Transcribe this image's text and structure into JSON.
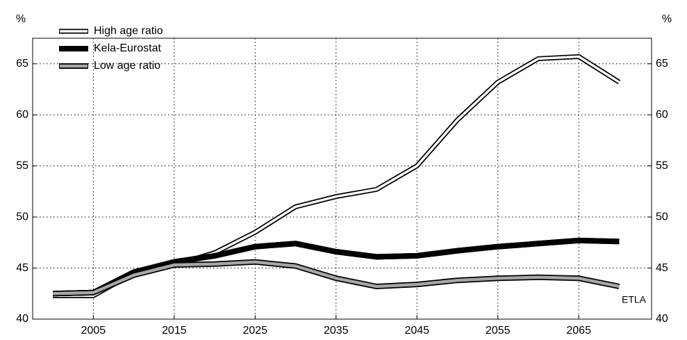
{
  "chart_data": {
    "type": "line",
    "y_unit_left": "%",
    "y_unit_right": "%",
    "annotation": "ETLA",
    "x": [
      2000,
      2005,
      2010,
      2015,
      2020,
      2025,
      2030,
      2035,
      2040,
      2045,
      2050,
      2055,
      2060,
      2065,
      2070
    ],
    "series": [
      {
        "name": "High age ratio",
        "color": "#ffffff",
        "values": [
          42.3,
          42.3,
          44.5,
          45.3,
          46.5,
          48.5,
          51.0,
          52.0,
          52.7,
          55.0,
          59.5,
          63.2,
          65.5,
          65.7,
          63.2
        ]
      },
      {
        "name": "Kela-Eurostat",
        "color": "#000000",
        "values": [
          42.5,
          42.6,
          44.6,
          45.6,
          46.2,
          47.1,
          47.4,
          46.6,
          46.1,
          46.2,
          46.7,
          47.1,
          47.4,
          47.7,
          47.6
        ]
      },
      {
        "name": "Low age ratio",
        "color": "#a6a6a6",
        "values": [
          42.5,
          42.6,
          44.3,
          45.3,
          45.4,
          45.6,
          45.2,
          44.0,
          43.2,
          43.4,
          43.8,
          44.0,
          44.1,
          44.0,
          43.2
        ]
      }
    ],
    "xlim": [
      1997.5,
      2074
    ],
    "xticks": [
      2005,
      2015,
      2025,
      2035,
      2045,
      2055,
      2065
    ],
    "ylim": [
      40,
      67.5
    ],
    "yticks": [
      40,
      45,
      50,
      55,
      60,
      65
    ],
    "grid": true,
    "legend": "upper-left"
  }
}
